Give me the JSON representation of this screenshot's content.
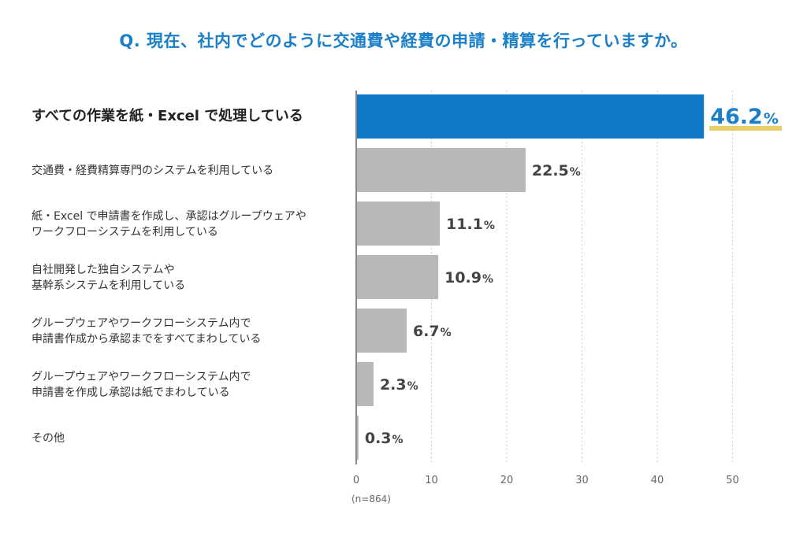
{
  "chart_data": {
    "type": "bar",
    "orientation": "horizontal",
    "title": "Q. 現在、社内でどのように交通費や経費の申請・精算を行っていますか。",
    "categories": [
      [
        "すべての作業を紙・Excel で処理している"
      ],
      [
        "交通費・経費精算専門のシステムを利用している"
      ],
      [
        "紙・Excel で申請書を作成し、承認はグループウェアや",
        "ワークフローシステムを利用している"
      ],
      [
        "自社開発した独自システムや",
        "基幹系システムを利用している"
      ],
      [
        "グループウェアやワークフローシステム内で",
        "申請書作成から承認までをすべてまわしている"
      ],
      [
        "グループウェアやワークフローシステム内で",
        "申請書を作成し承認は紙でまわしている"
      ],
      [
        "その他"
      ]
    ],
    "values": [
      46.2,
      22.5,
      11.1,
      10.9,
      6.7,
      2.3,
      0.3
    ],
    "unit": "%",
    "xlim": [
      0,
      50
    ],
    "xticks": [
      0,
      10,
      20,
      30,
      40,
      50
    ],
    "grid": true,
    "note": "(n=864)",
    "colors": {
      "highlight": "#0e79c6",
      "bar": "#b8b8b8",
      "title": "#1a7fc9",
      "underline": "#e6cf68",
      "axis": "#888888",
      "grid": "#cccccc"
    },
    "highlight_index": 0
  }
}
